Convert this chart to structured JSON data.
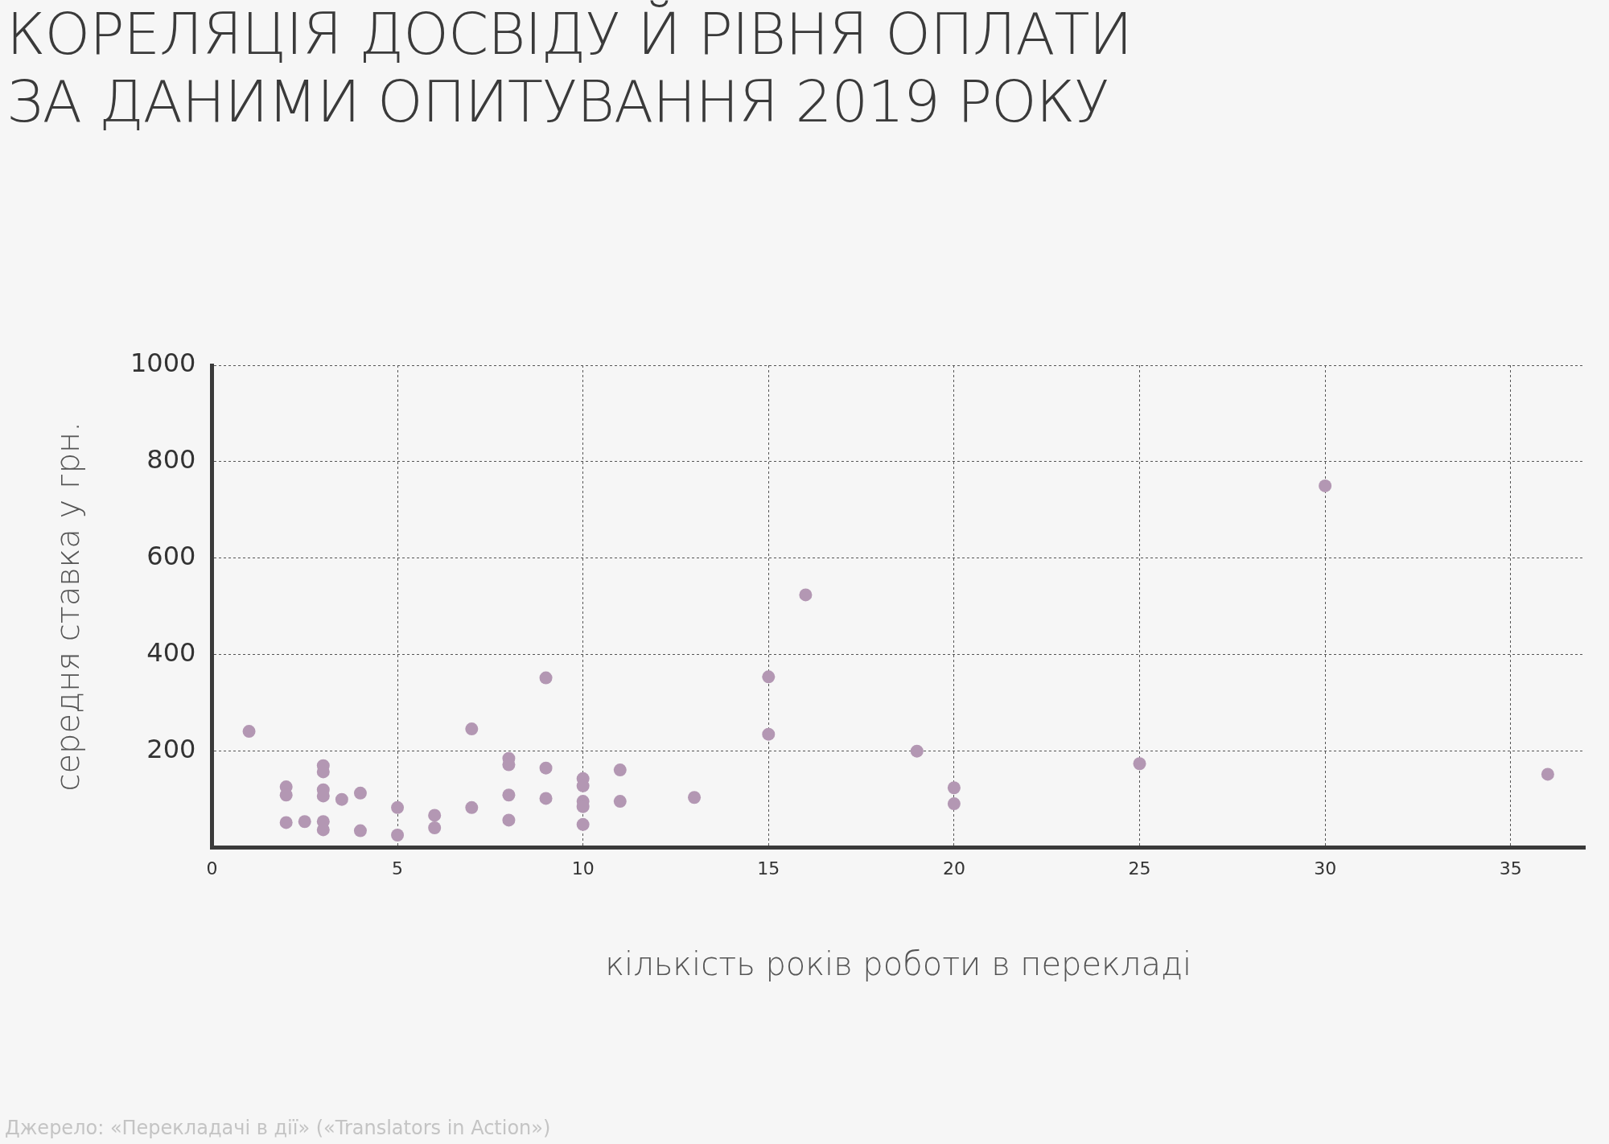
{
  "chart_data": {
    "type": "scatter",
    "title": "КОРЕЛЯЦІЯ ДОСВІДУ Й РІВНЯ ОПЛАТИ ЗА ДАНИМИ ОПИТУВАННЯ 2019 РОКУ",
    "xlabel": "кількість років роботи в перекладі",
    "ylabel": "середня ставка у грн.",
    "annotations": [
      "Джерело: «Перекладачі в дії» («Translators in Action»)"
    ],
    "series": [
      {
        "color": "#b397b3",
        "x": [
          1,
          2,
          2,
          2,
          2.5,
          3,
          3,
          3,
          3,
          3,
          3,
          3.5,
          4,
          4,
          5,
          5,
          6,
          6,
          7,
          7,
          8,
          8,
          8,
          8,
          9,
          9,
          9,
          10,
          10,
          10,
          10,
          10,
          11,
          11,
          13,
          15,
          15,
          16,
          19,
          20,
          20,
          25,
          30,
          36
        ],
        "values": [
          241,
          126,
          109,
          52,
          54,
          170,
          157,
          120,
          107,
          54,
          37,
          100,
          113,
          35,
          83,
          26,
          67,
          41,
          246,
          83,
          185,
          172,
          109,
          57,
          352,
          165,
          102,
          143,
          128,
          96,
          85,
          48,
          161,
          96,
          104,
          354,
          235,
          524,
          200,
          124,
          91,
          174,
          750,
          152
        ]
      }
    ],
    "xlim": [
      0,
      37
    ],
    "xticks": [
      0,
      5,
      10,
      15,
      20,
      25,
      30,
      35
    ],
    "ylim": [
      0,
      1000
    ],
    "yticks": [
      {
        "value": 0,
        "label": null
      },
      200,
      400,
      600,
      800,
      1000
    ],
    "grid": true,
    "marker": "circle",
    "legend": false
  }
}
